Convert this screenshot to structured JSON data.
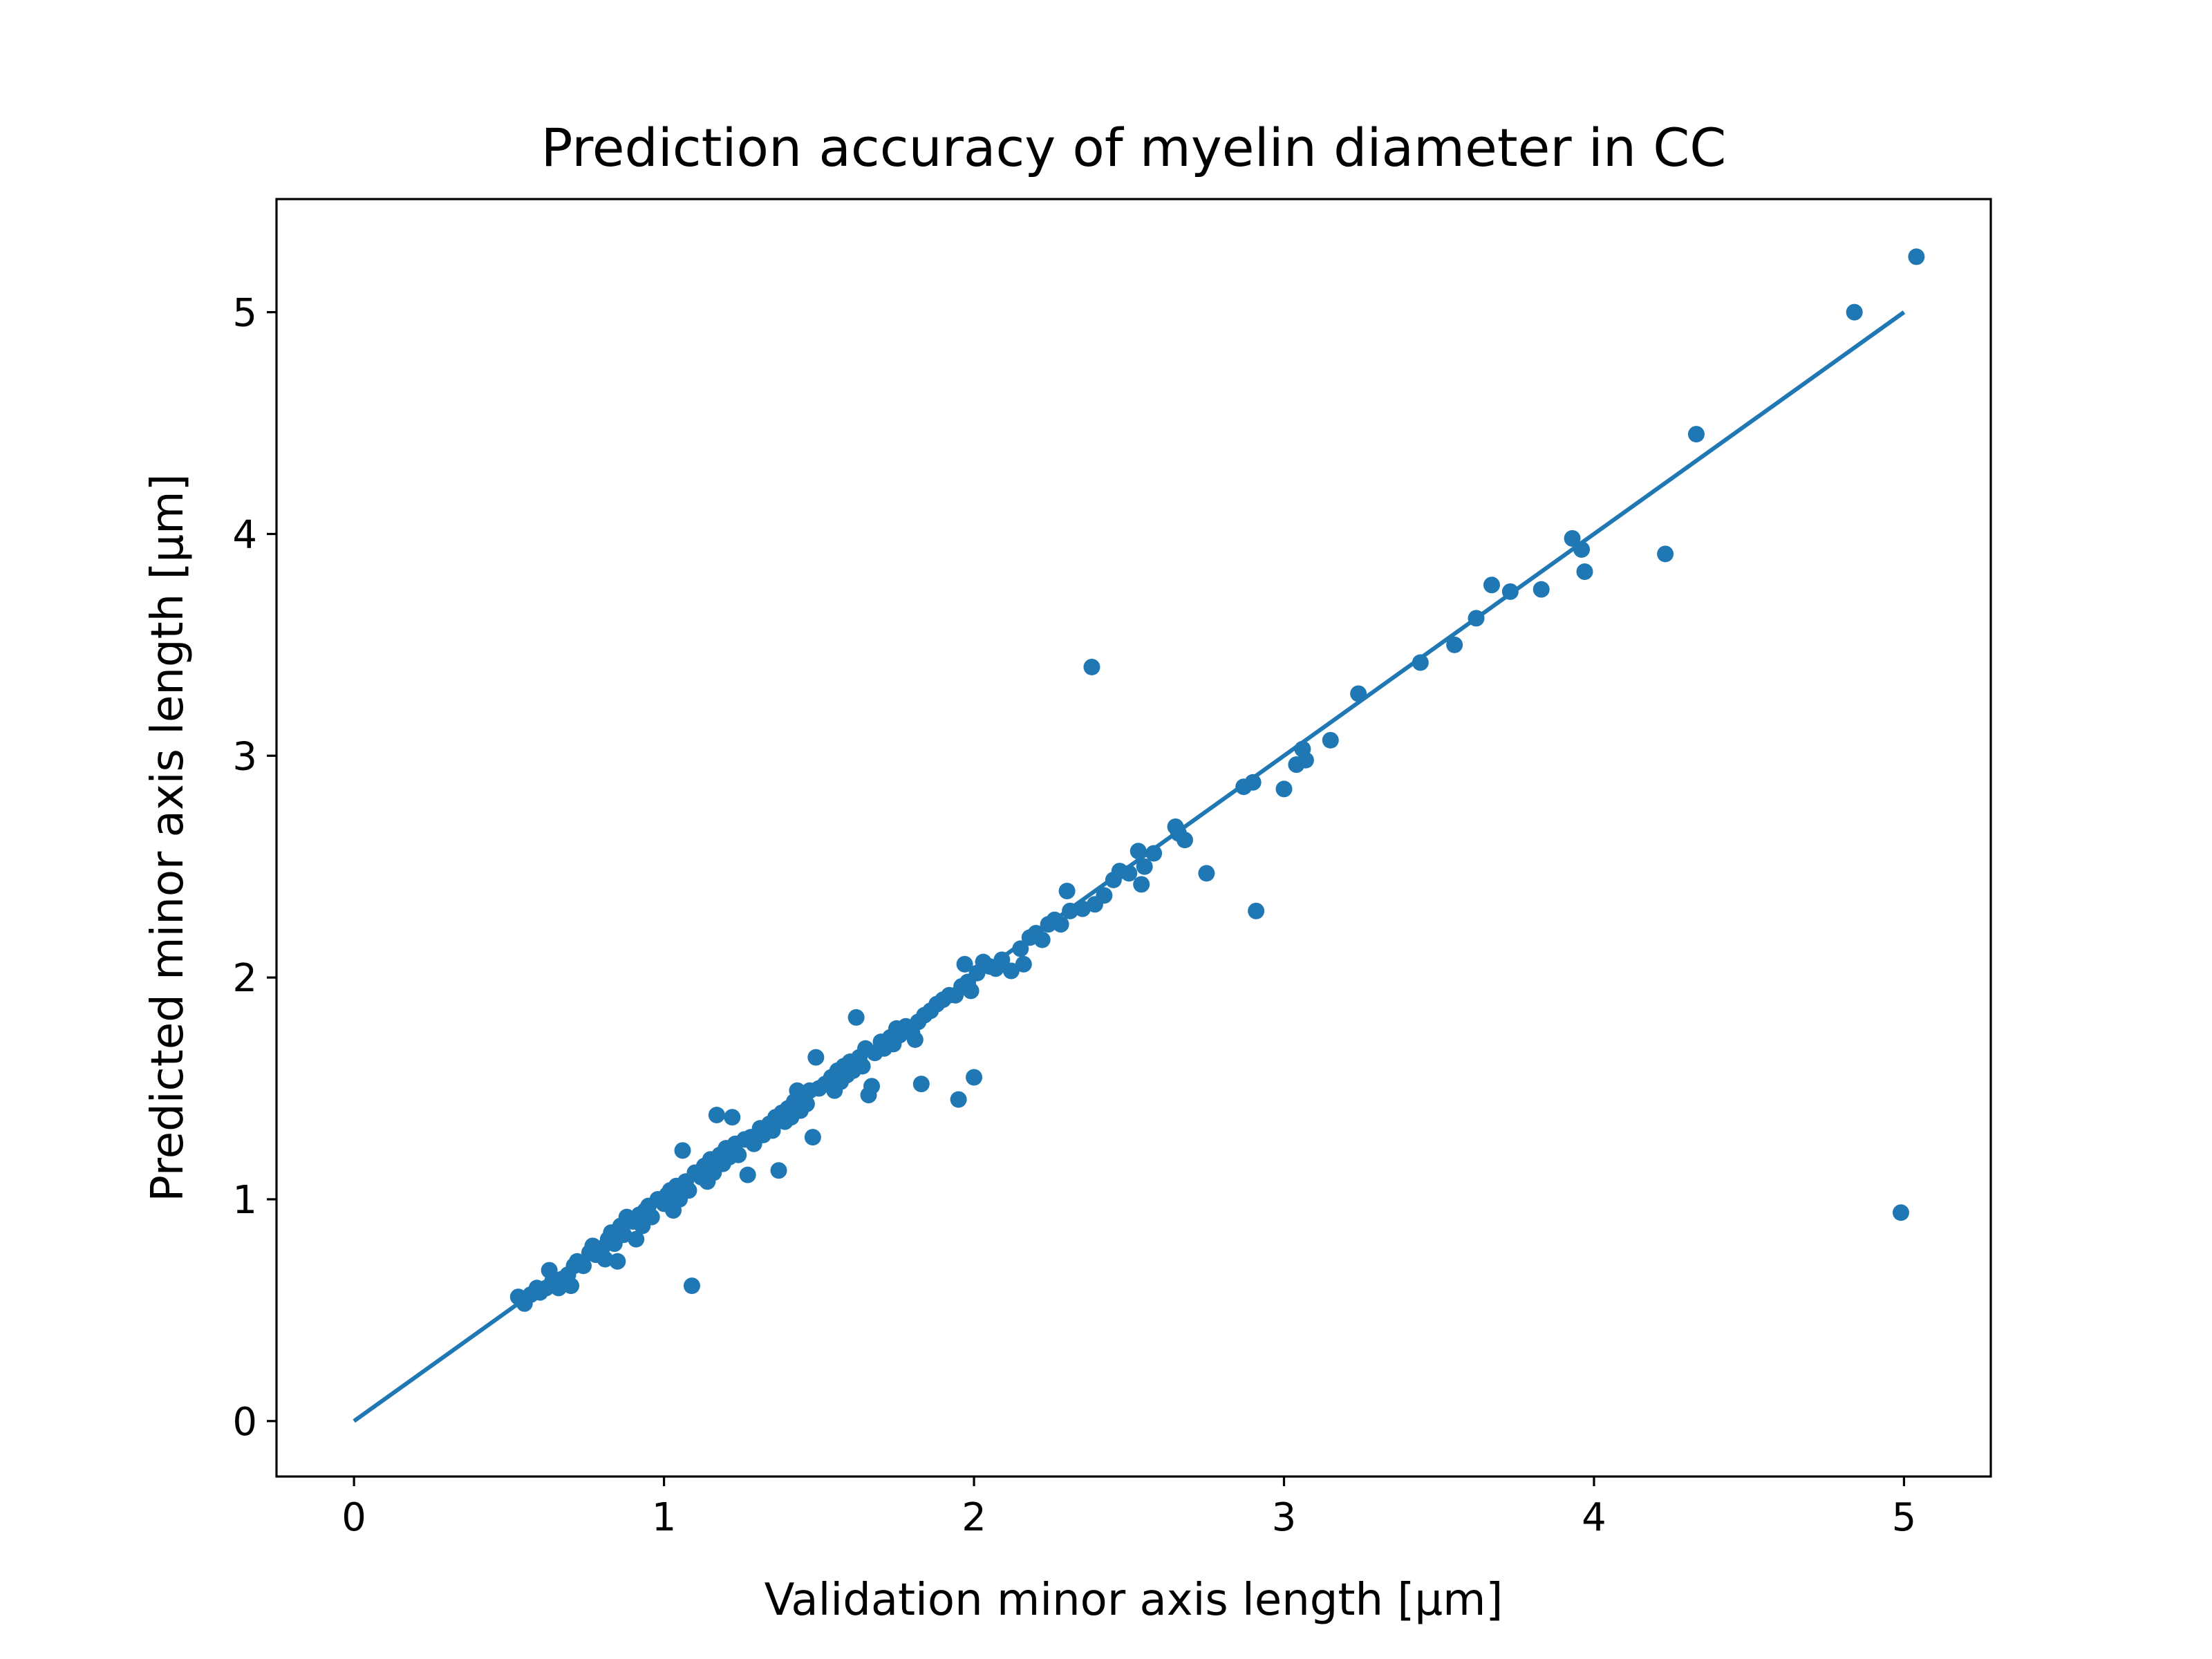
{
  "colors": {
    "series": "#1f77b4",
    "axes": "#000000",
    "background": "#ffffff"
  },
  "chart_data": {
    "type": "scatter",
    "title": "Prediction accuracy of myelin diameter in CC",
    "xlabel": "Validation minor axis length [µm]",
    "ylabel": "Predicted minor axis length [µm]",
    "xlim": [
      -0.25,
      5.28
    ],
    "ylim": [
      -0.25,
      5.51
    ],
    "grid": false,
    "legend": "none",
    "xticks": [
      0,
      1,
      2,
      3,
      4,
      5
    ],
    "yticks": [
      0,
      1,
      2,
      3,
      4,
      5
    ],
    "xtick_labels": [
      "0",
      "1",
      "2",
      "3",
      "4",
      "5"
    ],
    "ytick_labels": [
      "0",
      "1",
      "2",
      "3",
      "4",
      "5"
    ],
    "reference_line": {
      "x": [
        0,
        5.0
      ],
      "y": [
        0,
        5.0
      ]
    },
    "points": [
      [
        0.53,
        0.56
      ],
      [
        0.55,
        0.53
      ],
      [
        0.57,
        0.57
      ],
      [
        0.59,
        0.6
      ],
      [
        0.6,
        0.58
      ],
      [
        0.62,
        0.6
      ],
      [
        0.63,
        0.68
      ],
      [
        0.64,
        0.63
      ],
      [
        0.66,
        0.6
      ],
      [
        0.67,
        0.64
      ],
      [
        0.69,
        0.66
      ],
      [
        0.7,
        0.61
      ],
      [
        0.71,
        0.7
      ],
      [
        0.72,
        0.72
      ],
      [
        0.74,
        0.7
      ],
      [
        0.76,
        0.76
      ],
      [
        0.77,
        0.79
      ],
      [
        0.78,
        0.75
      ],
      [
        0.8,
        0.78
      ],
      [
        0.81,
        0.73
      ],
      [
        0.82,
        0.82
      ],
      [
        0.83,
        0.85
      ],
      [
        0.84,
        0.8
      ],
      [
        0.85,
        0.72
      ],
      [
        0.86,
        0.88
      ],
      [
        0.87,
        0.84
      ],
      [
        0.88,
        0.92
      ],
      [
        0.9,
        0.9
      ],
      [
        0.91,
        0.82
      ],
      [
        0.92,
        0.93
      ],
      [
        0.93,
        0.88
      ],
      [
        0.94,
        0.95
      ],
      [
        0.95,
        0.97
      ],
      [
        0.96,
        0.92
      ],
      [
        0.98,
        1.0
      ],
      [
        1.0,
        0.98
      ],
      [
        1.01,
        1.02
      ],
      [
        1.02,
        1.04
      ],
      [
        1.03,
        0.95
      ],
      [
        1.04,
        1.06
      ],
      [
        1.05,
        1.0
      ],
      [
        1.06,
        1.22
      ],
      [
        1.07,
        1.08
      ],
      [
        1.08,
        1.04
      ],
      [
        1.09,
        0.61
      ],
      [
        1.1,
        1.12
      ],
      [
        1.12,
        1.1
      ],
      [
        1.13,
        1.15
      ],
      [
        1.14,
        1.08
      ],
      [
        1.15,
        1.18
      ],
      [
        1.16,
        1.12
      ],
      [
        1.17,
        1.38
      ],
      [
        1.18,
        1.2
      ],
      [
        1.19,
        1.16
      ],
      [
        1.2,
        1.23
      ],
      [
        1.21,
        1.19
      ],
      [
        1.22,
        1.37
      ],
      [
        1.23,
        1.25
      ],
      [
        1.24,
        1.2
      ],
      [
        1.26,
        1.27
      ],
      [
        1.27,
        1.11
      ],
      [
        1.28,
        1.28
      ],
      [
        1.29,
        1.25
      ],
      [
        1.31,
        1.32
      ],
      [
        1.32,
        1.29
      ],
      [
        1.34,
        1.34
      ],
      [
        1.35,
        1.31
      ],
      [
        1.36,
        1.37
      ],
      [
        1.37,
        1.13
      ],
      [
        1.38,
        1.39
      ],
      [
        1.39,
        1.35
      ],
      [
        1.4,
        1.41
      ],
      [
        1.41,
        1.37
      ],
      [
        1.42,
        1.44
      ],
      [
        1.43,
        1.49
      ],
      [
        1.44,
        1.4
      ],
      [
        1.45,
        1.46
      ],
      [
        1.46,
        1.43
      ],
      [
        1.47,
        1.49
      ],
      [
        1.48,
        1.28
      ],
      [
        1.49,
        1.64
      ],
      [
        1.5,
        1.5
      ],
      [
        1.52,
        1.52
      ],
      [
        1.54,
        1.55
      ],
      [
        1.55,
        1.49
      ],
      [
        1.56,
        1.58
      ],
      [
        1.57,
        1.53
      ],
      [
        1.58,
        1.6
      ],
      [
        1.59,
        1.56
      ],
      [
        1.6,
        1.62
      ],
      [
        1.61,
        1.58
      ],
      [
        1.62,
        1.82
      ],
      [
        1.63,
        1.64
      ],
      [
        1.64,
        1.6
      ],
      [
        1.65,
        1.68
      ],
      [
        1.66,
        1.47
      ],
      [
        1.67,
        1.51
      ],
      [
        1.68,
        1.66
      ],
      [
        1.7,
        1.71
      ],
      [
        1.71,
        1.68
      ],
      [
        1.73,
        1.73
      ],
      [
        1.74,
        1.7
      ],
      [
        1.75,
        1.77
      ],
      [
        1.76,
        1.74
      ],
      [
        1.78,
        1.78
      ],
      [
        1.8,
        1.75
      ],
      [
        1.81,
        1.72
      ],
      [
        1.82,
        1.8
      ],
      [
        1.83,
        1.52
      ],
      [
        1.84,
        1.83
      ],
      [
        1.86,
        1.85
      ],
      [
        1.88,
        1.88
      ],
      [
        1.9,
        1.9
      ],
      [
        1.92,
        1.92
      ],
      [
        1.94,
        1.92
      ],
      [
        1.95,
        1.45
      ],
      [
        1.96,
        1.96
      ],
      [
        1.97,
        2.06
      ],
      [
        1.98,
        1.98
      ],
      [
        1.99,
        1.94
      ],
      [
        2.0,
        1.55
      ],
      [
        2.01,
        2.02
      ],
      [
        2.03,
        2.07
      ],
      [
        2.05,
        2.05
      ],
      [
        2.07,
        2.04
      ],
      [
        2.09,
        2.08
      ],
      [
        2.12,
        2.03
      ],
      [
        2.15,
        2.13
      ],
      [
        2.16,
        2.06
      ],
      [
        2.18,
        2.18
      ],
      [
        2.2,
        2.2
      ],
      [
        2.22,
        2.17
      ],
      [
        2.24,
        2.24
      ],
      [
        2.26,
        2.26
      ],
      [
        2.28,
        2.24
      ],
      [
        2.3,
        2.39
      ],
      [
        2.31,
        2.3
      ],
      [
        2.35,
        2.31
      ],
      [
        2.38,
        3.4
      ],
      [
        2.39,
        2.33
      ],
      [
        2.42,
        2.37
      ],
      [
        2.45,
        2.44
      ],
      [
        2.47,
        2.48
      ],
      [
        2.5,
        2.47
      ],
      [
        2.53,
        2.57
      ],
      [
        2.54,
        2.42
      ],
      [
        2.55,
        2.5
      ],
      [
        2.58,
        2.56
      ],
      [
        2.65,
        2.68
      ],
      [
        2.66,
        2.65
      ],
      [
        2.68,
        2.62
      ],
      [
        2.75,
        2.47
      ],
      [
        2.87,
        2.86
      ],
      [
        2.9,
        2.88
      ],
      [
        2.91,
        2.3
      ],
      [
        3.0,
        2.85
      ],
      [
        3.04,
        2.96
      ],
      [
        3.06,
        3.03
      ],
      [
        3.07,
        2.98
      ],
      [
        3.15,
        3.07
      ],
      [
        3.24,
        3.28
      ],
      [
        3.44,
        3.42
      ],
      [
        3.55,
        3.5
      ],
      [
        3.62,
        3.62
      ],
      [
        3.67,
        3.77
      ],
      [
        3.73,
        3.74
      ],
      [
        3.83,
        3.75
      ],
      [
        3.93,
        3.98
      ],
      [
        3.96,
        3.93
      ],
      [
        3.97,
        3.83
      ],
      [
        4.23,
        3.91
      ],
      [
        4.33,
        4.45
      ],
      [
        4.84,
        5.0
      ],
      [
        4.99,
        0.94
      ],
      [
        5.04,
        5.25
      ]
    ]
  }
}
